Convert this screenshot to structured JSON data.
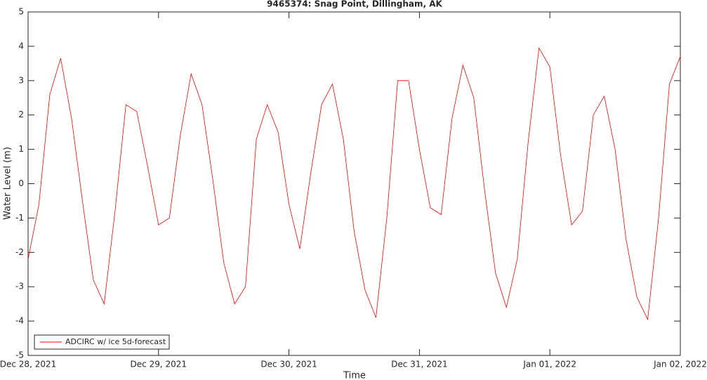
{
  "chart_data": {
    "type": "line",
    "title": "9465374: Snag Point, Dillingham, AK",
    "xlabel": "Time",
    "ylabel": "Water Level (m)",
    "xlim": [
      "2021-12-28T00:00",
      "2022-01-02T00:00"
    ],
    "xticks": [
      {
        "value": "2021-12-28T00:00",
        "label": "Dec 28, 2021"
      },
      {
        "value": "2021-12-29T00:00",
        "label": "Dec 29, 2021"
      },
      {
        "value": "2021-12-30T00:00",
        "label": "Dec 30, 2021"
      },
      {
        "value": "2021-12-31T00:00",
        "label": "Dec 31, 2021"
      },
      {
        "value": "2022-01-01T00:00",
        "label": "Jan 01, 2022"
      },
      {
        "value": "2022-01-02T00:00",
        "label": "Jan 02, 2022"
      }
    ],
    "ylim": [
      -5,
      5
    ],
    "yticks": [
      -5,
      -4,
      -3,
      -2,
      -1,
      0,
      1,
      2,
      3,
      4,
      5
    ],
    "grid": false,
    "legend": "lower left",
    "x": [
      "2021-12-28T00:00",
      "2021-12-28T02:00",
      "2021-12-28T04:00",
      "2021-12-28T06:00",
      "2021-12-28T08:00",
      "2021-12-28T10:00",
      "2021-12-28T12:00",
      "2021-12-28T14:00",
      "2021-12-28T16:00",
      "2021-12-28T18:00",
      "2021-12-28T20:00",
      "2021-12-28T22:00",
      "2021-12-29T00:00",
      "2021-12-29T02:00",
      "2021-12-29T04:00",
      "2021-12-29T06:00",
      "2021-12-29T08:00",
      "2021-12-29T10:00",
      "2021-12-29T12:00",
      "2021-12-29T14:00",
      "2021-12-29T16:00",
      "2021-12-29T18:00",
      "2021-12-29T20:00",
      "2021-12-29T22:00",
      "2021-12-30T00:00",
      "2021-12-30T02:00",
      "2021-12-30T04:00",
      "2021-12-30T06:00",
      "2021-12-30T08:00",
      "2021-12-30T10:00",
      "2021-12-30T12:00",
      "2021-12-30T14:00",
      "2021-12-30T16:00",
      "2021-12-30T18:00",
      "2021-12-30T20:00",
      "2021-12-30T22:00",
      "2021-12-31T00:00",
      "2021-12-31T02:00",
      "2021-12-31T04:00",
      "2021-12-31T06:00",
      "2021-12-31T08:00",
      "2021-12-31T10:00",
      "2021-12-31T12:00",
      "2021-12-31T14:00",
      "2021-12-31T16:00",
      "2021-12-31T18:00",
      "2021-12-31T20:00",
      "2021-12-31T22:00",
      "2022-01-01T00:00",
      "2022-01-01T02:00",
      "2022-01-01T04:00",
      "2022-01-01T06:00",
      "2022-01-01T08:00",
      "2022-01-01T10:00",
      "2022-01-01T12:00",
      "2022-01-01T14:00",
      "2022-01-01T16:00",
      "2022-01-01T18:00",
      "2022-01-01T20:00",
      "2022-01-01T22:00",
      "2022-01-02T00:00"
    ],
    "series": [
      {
        "name": "ADCIRC w/ ice 5d-forecast",
        "color": "#ff0000",
        "values": [
          -2.2,
          -0.6,
          2.6,
          3.65,
          1.9,
          -0.5,
          -2.8,
          -3.5,
          -0.8,
          2.3,
          2.1,
          0.5,
          -1.2,
          -1.0,
          1.4,
          3.2,
          2.3,
          0.1,
          -2.3,
          -3.5,
          -3.0,
          1.3,
          2.3,
          1.5,
          -0.6,
          -1.9,
          0.3,
          2.3,
          2.9,
          1.3,
          -1.4,
          -3.1,
          -3.9,
          -1.0,
          3.0,
          3.0,
          1.0,
          -0.7,
          -0.9,
          1.9,
          3.45,
          2.5,
          -0.2,
          -2.6,
          -3.6,
          -2.2,
          1.2,
          3.95,
          3.4,
          0.8,
          -1.2,
          -0.8,
          2.0,
          2.55,
          1.0,
          -1.6,
          -3.3,
          -3.95,
          -1.0,
          2.9,
          3.7
        ]
      }
    ]
  }
}
